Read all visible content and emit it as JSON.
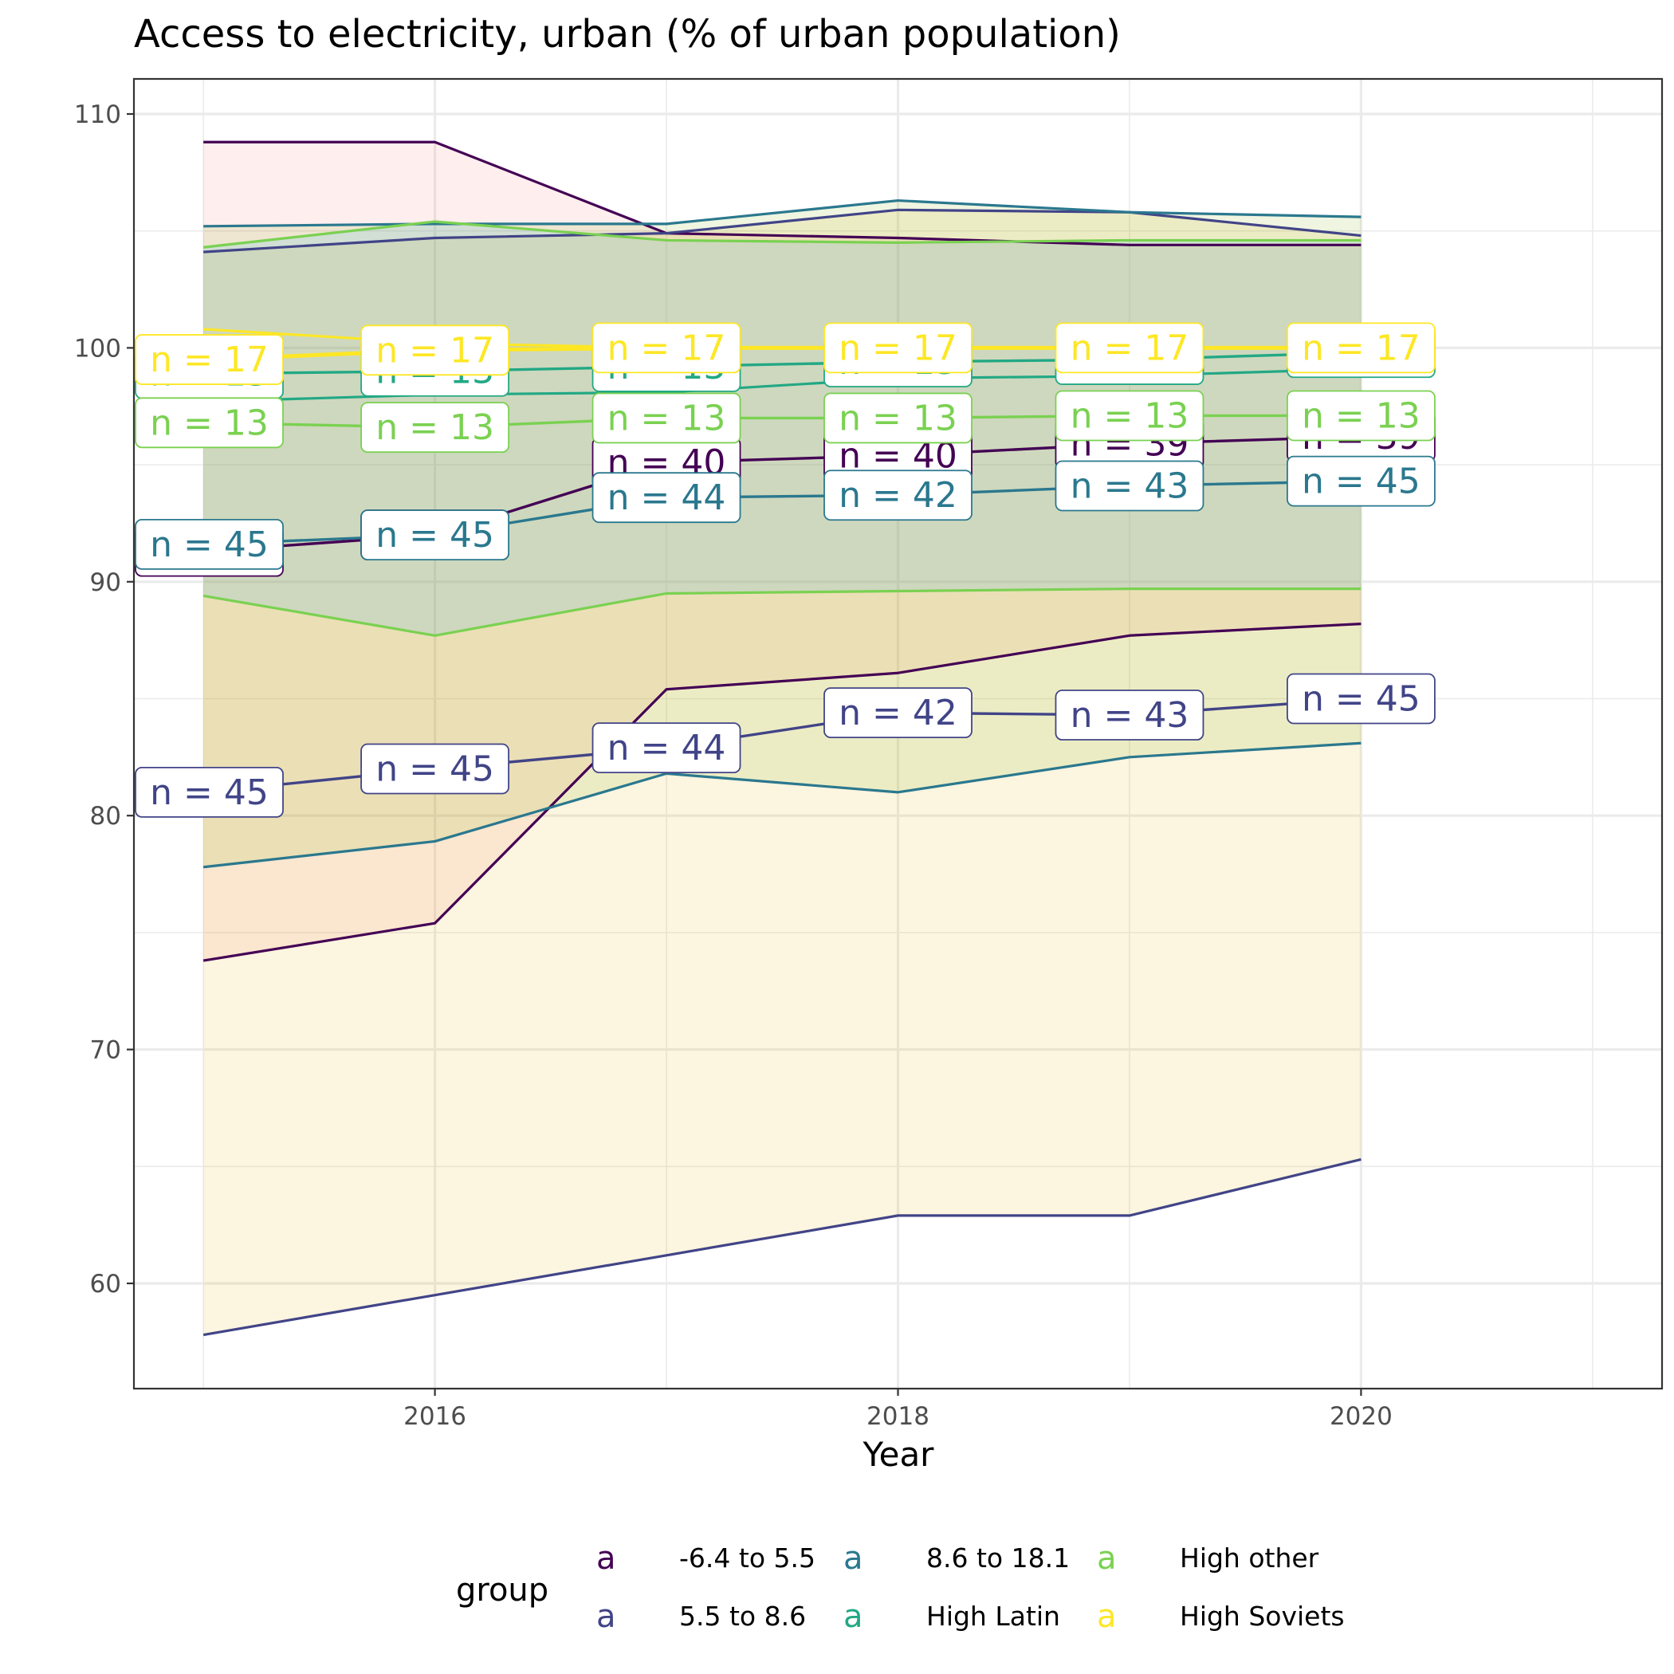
{
  "chart_data": {
    "type": "line",
    "title": "Access to electricity, urban (% of urban population)",
    "xlabel": "Year",
    "ylabel": "",
    "xlim": [
      2014.7,
      2021.3
    ],
    "ylim": [
      55.5,
      111.5
    ],
    "x_ticks": [
      2016,
      2018,
      2020
    ],
    "y_ticks": [
      60,
      70,
      80,
      90,
      100,
      110
    ],
    "grid": true,
    "legend": {
      "title": "group",
      "position": "bottom",
      "key_glyph": "a",
      "entries": [
        {
          "name": "-6.4 to 5.5",
          "color": "#440154"
        },
        {
          "name": "5.5 to 8.6",
          "color": "#414487"
        },
        {
          "name": "8.6 to 18.1",
          "color": "#2a788e"
        },
        {
          "name": "High Latin",
          "color": "#22a884"
        },
        {
          "name": "High other",
          "color": "#7ad151"
        },
        {
          "name": "High Soviets",
          "color": "#fde725"
        }
      ]
    },
    "x": [
      2015,
      2016,
      2017,
      2018,
      2019,
      2020
    ],
    "ribbons": [
      {
        "fill": "#f8766d",
        "lower": [
          73.8,
          75.4,
          85.4,
          86.1,
          87.7,
          88.2
        ],
        "upper": [
          108.8,
          108.8,
          104.9,
          104.7,
          104.4,
          104.4
        ]
      },
      {
        "fill": "#e6ab02",
        "lower": [
          57.8,
          59.5,
          61.2,
          62.9,
          62.9,
          65.3
        ],
        "upper": [
          104.1,
          104.7,
          104.9,
          105.9,
          105.8,
          104.8
        ]
      },
      {
        "fill": "#7cae00",
        "lower": [
          77.8,
          78.9,
          81.8,
          81.0,
          82.5,
          83.1
        ],
        "upper": [
          105.2,
          105.3,
          105.3,
          106.3,
          105.8,
          105.6
        ]
      },
      {
        "fill": "#00a9ff",
        "lower": [
          89.4,
          87.7,
          89.5,
          89.6,
          89.7,
          89.7
        ],
        "upper": [
          104.3,
          105.4,
          104.6,
          104.5,
          104.6,
          104.6
        ]
      }
    ],
    "bound_lines": [
      {
        "color": "#440154",
        "values": [
          108.8,
          108.8,
          104.9,
          104.7,
          104.4,
          104.4
        ]
      },
      {
        "color": "#440154",
        "values": [
          73.8,
          75.4,
          85.4,
          86.1,
          87.7,
          88.2
        ]
      },
      {
        "color": "#414487",
        "values": [
          104.1,
          104.7,
          104.9,
          105.9,
          105.8,
          104.8
        ]
      },
      {
        "color": "#414487",
        "values": [
          57.8,
          59.5,
          61.2,
          62.9,
          62.9,
          65.3
        ]
      },
      {
        "color": "#2a788e",
        "values": [
          105.2,
          105.3,
          105.3,
          106.3,
          105.8,
          105.6
        ]
      },
      {
        "color": "#2a788e",
        "values": [
          77.8,
          78.9,
          81.8,
          81.0,
          82.5,
          83.1
        ]
      },
      {
        "color": "#7ad151",
        "values": [
          104.3,
          105.4,
          104.6,
          104.5,
          104.6,
          104.6
        ]
      },
      {
        "color": "#7ad151",
        "values": [
          89.4,
          87.7,
          89.5,
          89.6,
          89.7,
          89.7
        ]
      },
      {
        "color": "#22a884",
        "values": [
          97.7,
          98.0,
          98.1,
          98.7,
          98.8,
          99.1
        ]
      },
      {
        "color": "#fde725",
        "values": [
          100.8,
          100.2,
          100.0,
          100.0,
          100.0,
          100.0
        ]
      }
    ],
    "series": [
      {
        "name": "-6.4 to 5.5",
        "color": "#440154",
        "values": [
          91.3,
          92.0,
          95.1,
          95.4,
          95.9,
          96.2
        ],
        "n": [
          "n = 45",
          "n = 45",
          "n = 40",
          "n = 40",
          "n = 39",
          "n = 39"
        ]
      },
      {
        "name": "5.5 to 8.6",
        "color": "#414487",
        "values": [
          81.0,
          82.0,
          82.9,
          84.4,
          84.3,
          85.0
        ],
        "n": [
          "n = 45",
          "n = 45",
          "n = 44",
          "n = 42",
          "n = 43",
          "n = 45"
        ]
      },
      {
        "name": "8.6 to 18.1",
        "color": "#2a788e",
        "values": [
          91.6,
          92.0,
          93.6,
          93.7,
          94.1,
          94.3
        ],
        "n": [
          "n = 45",
          "n = 45",
          "n = 44",
          "n = 42",
          "n = 43",
          "n = 45"
        ]
      },
      {
        "name": "High Latin",
        "color": "#22a884",
        "values": [
          98.9,
          99.0,
          99.2,
          99.4,
          99.5,
          99.8
        ],
        "n": [
          "n = 13",
          "n = 13",
          "n = 13",
          "n = 13",
          "n = 13",
          "n = 13"
        ]
      },
      {
        "name": "High other",
        "color": "#7ad151",
        "values": [
          96.8,
          96.6,
          97.0,
          97.0,
          97.1,
          97.1
        ],
        "n": [
          "n = 13",
          "n = 13",
          "n = 13",
          "n = 13",
          "n = 13",
          "n = 13"
        ]
      },
      {
        "name": "High Soviets",
        "color": "#fde725",
        "values": [
          99.5,
          99.9,
          100.0,
          100.0,
          100.0,
          100.0
        ],
        "n": [
          "n = 17",
          "n = 17",
          "n = 17",
          "n = 17",
          "n = 17",
          "n = 17"
        ]
      }
    ]
  }
}
